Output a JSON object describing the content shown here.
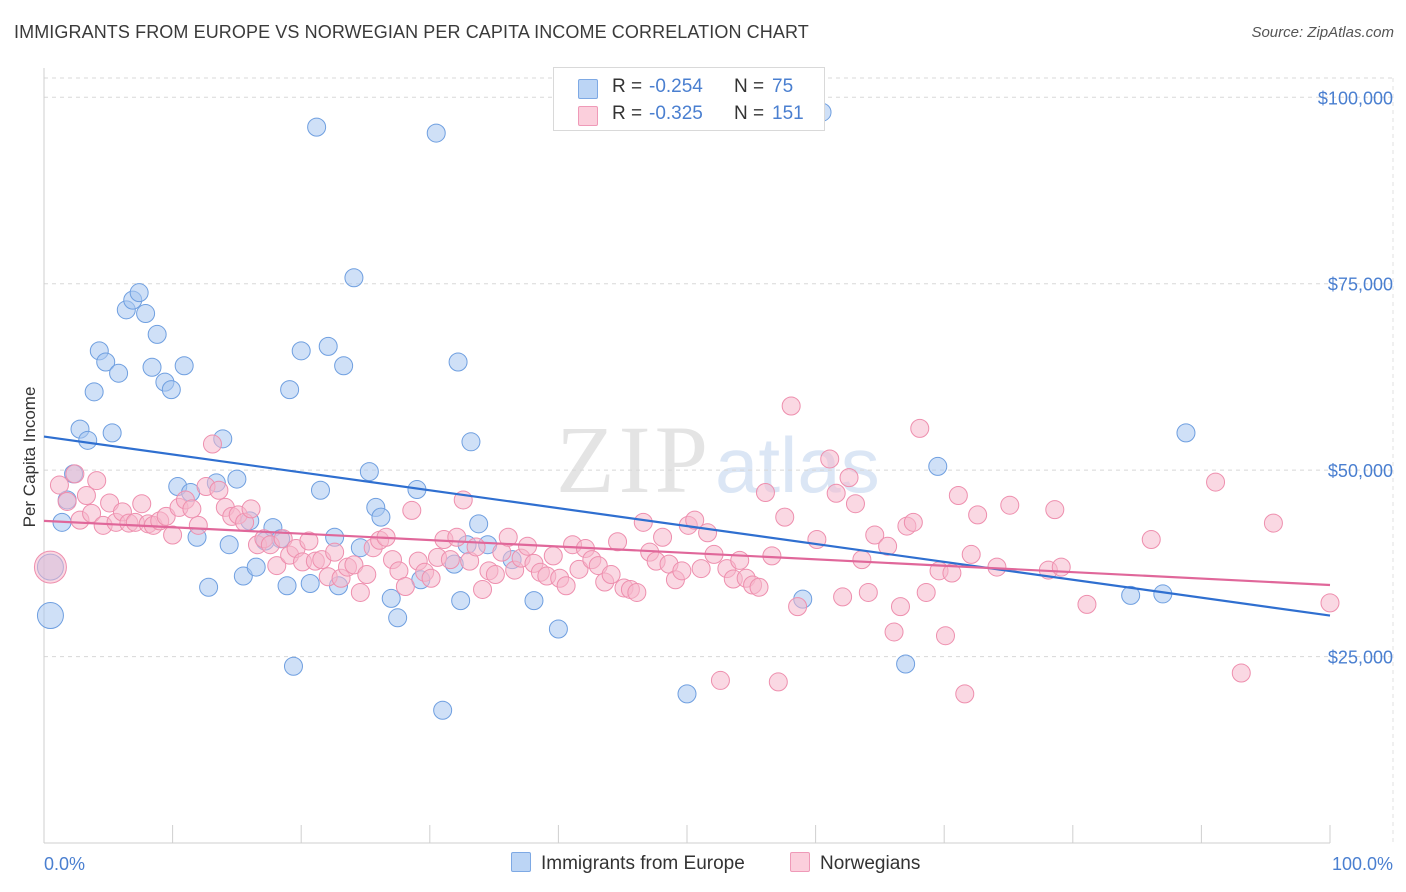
{
  "title": "IMMIGRANTS FROM EUROPE VS NORWEGIAN PER CAPITA INCOME CORRELATION CHART",
  "source": "Source: ZipAtlas.com",
  "watermark": {
    "zip": "ZIP",
    "atlas": "atlas"
  },
  "legend_top": [
    {
      "r_label": "R =",
      "r_value": "-0.254",
      "n_label": "N =",
      "n_value": "75",
      "color": "#a7c6f0"
    },
    {
      "r_label": "R =",
      "r_value": "-0.325",
      "n_label": "N =",
      "n_value": "151",
      "color": "#f6b8cc"
    }
  ],
  "legend_bottom": [
    {
      "label": "Immigrants from Europe",
      "color": "#a7c6f0"
    },
    {
      "label": "Norwegians",
      "color": "#f6b8cc"
    }
  ],
  "chart_data": {
    "type": "scatter",
    "title": "IMMIGRANTS FROM EUROPE VS NORWEGIAN PER CAPITA INCOME CORRELATION CHART",
    "xlabel": "",
    "ylabel": "Per Capita Income",
    "xlim": [
      0,
      100
    ],
    "ylim": [
      0,
      105000
    ],
    "x_tick_labels": [
      "0.0%",
      "100.0%"
    ],
    "y_ticks": [
      25000,
      50000,
      75000,
      100000
    ],
    "y_tick_labels": [
      "$25,000",
      "$50,000",
      "$75,000",
      "$100,000"
    ],
    "grid": true,
    "legend_position": "top-center",
    "series": [
      {
        "name": "Immigrants from Europe",
        "color": "#a7c6f0",
        "stroke": "#6f9fe0",
        "trend_color": "#2f6fd0",
        "trend": {
          "x": [
            0,
            100
          ],
          "y": [
            54500,
            30500
          ]
        },
        "points": [
          [
            0.5,
            30500,
            2
          ],
          [
            0.5,
            37000,
            2
          ],
          [
            1.4,
            43000,
            1
          ],
          [
            1.8,
            46000,
            1
          ],
          [
            2.3,
            49500,
            1
          ],
          [
            2.8,
            55500,
            1
          ],
          [
            3.4,
            54000,
            1
          ],
          [
            3.9,
            60500,
            1
          ],
          [
            4.3,
            66000,
            1
          ],
          [
            4.8,
            64500,
            1
          ],
          [
            5.3,
            55000,
            1
          ],
          [
            5.8,
            63000,
            1
          ],
          [
            6.4,
            71500,
            1
          ],
          [
            6.9,
            72800,
            1
          ],
          [
            7.4,
            73800,
            1
          ],
          [
            7.9,
            71000,
            1
          ],
          [
            8.4,
            63800,
            1
          ],
          [
            8.8,
            68200,
            1
          ],
          [
            9.4,
            61800,
            1
          ],
          [
            9.9,
            60800,
            1
          ],
          [
            10.4,
            47800,
            1
          ],
          [
            10.9,
            64000,
            1
          ],
          [
            11.4,
            47000,
            1
          ],
          [
            11.9,
            41000,
            1
          ],
          [
            12.8,
            34300,
            1
          ],
          [
            13.4,
            48300,
            1
          ],
          [
            13.9,
            54200,
            1
          ],
          [
            14.4,
            40000,
            1
          ],
          [
            15.0,
            48800,
            1
          ],
          [
            15.5,
            35800,
            1
          ],
          [
            16.0,
            43200,
            1
          ],
          [
            16.5,
            37000,
            1
          ],
          [
            17.2,
            40500,
            1
          ],
          [
            17.8,
            42300,
            1
          ],
          [
            18.4,
            40800,
            1
          ],
          [
            18.9,
            34500,
            1
          ],
          [
            19.1,
            60800,
            1
          ],
          [
            19.4,
            23700,
            1
          ],
          [
            20.0,
            66000,
            1
          ],
          [
            20.7,
            34800,
            1
          ],
          [
            21.2,
            96000,
            1
          ],
          [
            21.5,
            47300,
            1
          ],
          [
            22.1,
            66600,
            1
          ],
          [
            22.6,
            41000,
            1
          ],
          [
            22.9,
            34500,
            1
          ],
          [
            23.3,
            64000,
            1
          ],
          [
            24.1,
            75800,
            1
          ],
          [
            24.6,
            39600,
            1
          ],
          [
            25.3,
            49800,
            1
          ],
          [
            25.8,
            45000,
            1
          ],
          [
            26.2,
            43700,
            1
          ],
          [
            27.0,
            32800,
            1
          ],
          [
            27.5,
            30200,
            1
          ],
          [
            29.0,
            47400,
            1
          ],
          [
            29.3,
            35300,
            1
          ],
          [
            30.5,
            95200,
            1
          ],
          [
            31.0,
            17800,
            1
          ],
          [
            31.9,
            37400,
            1
          ],
          [
            32.4,
            32500,
            1
          ],
          [
            32.9,
            40000,
            1
          ],
          [
            33.2,
            53800,
            1
          ],
          [
            33.8,
            42800,
            1
          ],
          [
            34.5,
            40000,
            1
          ],
          [
            32.2,
            64500,
            1
          ],
          [
            36.4,
            38000,
            1
          ],
          [
            38.1,
            32500,
            1
          ],
          [
            40.0,
            28700,
            1
          ],
          [
            50.0,
            20000,
            1
          ],
          [
            59.0,
            32700,
            1
          ],
          [
            60.5,
            98000,
            1
          ],
          [
            67.0,
            24000,
            1
          ],
          [
            69.5,
            50500,
            1
          ],
          [
            84.5,
            33200,
            1
          ],
          [
            87.0,
            33400,
            1
          ],
          [
            88.8,
            55000,
            1
          ]
        ]
      },
      {
        "name": "Norwegians",
        "color": "#f6b8cc",
        "stroke": "#ee8fae",
        "trend_color": "#e0679a",
        "trend": {
          "x": [
            0,
            100
          ],
          "y": [
            43200,
            34600
          ]
        },
        "points": [
          [
            0.5,
            37000,
            3
          ],
          [
            1.2,
            48000,
            1
          ],
          [
            1.8,
            45800,
            1
          ],
          [
            2.4,
            49500,
            1
          ],
          [
            2.8,
            43300,
            1
          ],
          [
            3.3,
            46600,
            1
          ],
          [
            3.7,
            44200,
            1
          ],
          [
            4.1,
            48600,
            1
          ],
          [
            4.6,
            42600,
            1
          ],
          [
            5.1,
            45600,
            1
          ],
          [
            5.6,
            43000,
            1
          ],
          [
            6.1,
            44400,
            1
          ],
          [
            6.6,
            42900,
            1
          ],
          [
            7.1,
            43000,
            1
          ],
          [
            7.6,
            45500,
            1
          ],
          [
            8.1,
            42800,
            1
          ],
          [
            8.5,
            42600,
            1
          ],
          [
            9.0,
            43200,
            1
          ],
          [
            9.5,
            43800,
            1
          ],
          [
            10.0,
            41300,
            1
          ],
          [
            10.5,
            45000,
            1
          ],
          [
            11.0,
            46000,
            1
          ],
          [
            11.5,
            44800,
            1
          ],
          [
            12.0,
            42600,
            1
          ],
          [
            12.6,
            47800,
            1
          ],
          [
            13.1,
            53500,
            1
          ],
          [
            13.6,
            47300,
            1
          ],
          [
            14.1,
            45000,
            1
          ],
          [
            14.6,
            43800,
            1
          ],
          [
            15.1,
            44000,
            1
          ],
          [
            15.6,
            43000,
            1
          ],
          [
            16.1,
            44800,
            1
          ],
          [
            16.6,
            40000,
            1
          ],
          [
            17.1,
            40800,
            1
          ],
          [
            17.6,
            40000,
            1
          ],
          [
            18.1,
            37200,
            1
          ],
          [
            18.6,
            40800,
            1
          ],
          [
            19.1,
            38600,
            1
          ],
          [
            19.6,
            39500,
            1
          ],
          [
            20.1,
            37700,
            1
          ],
          [
            20.6,
            40500,
            1
          ],
          [
            21.1,
            37800,
            1
          ],
          [
            21.6,
            38000,
            1
          ],
          [
            22.1,
            35700,
            1
          ],
          [
            22.6,
            39000,
            1
          ],
          [
            23.1,
            35500,
            1
          ],
          [
            23.6,
            37000,
            1
          ],
          [
            24.1,
            37300,
            1
          ],
          [
            24.6,
            33600,
            1
          ],
          [
            25.1,
            36000,
            1
          ],
          [
            25.6,
            39600,
            1
          ],
          [
            26.1,
            40600,
            1
          ],
          [
            26.6,
            41000,
            1
          ],
          [
            27.1,
            38000,
            1
          ],
          [
            27.6,
            36500,
            1
          ],
          [
            28.1,
            34400,
            1
          ],
          [
            28.6,
            44600,
            1
          ],
          [
            29.1,
            37800,
            1
          ],
          [
            29.6,
            36300,
            1
          ],
          [
            30.1,
            35500,
            1
          ],
          [
            30.6,
            38300,
            1
          ],
          [
            31.1,
            40700,
            1
          ],
          [
            31.6,
            38000,
            1
          ],
          [
            32.1,
            41000,
            1
          ],
          [
            32.6,
            46000,
            1
          ],
          [
            33.1,
            37800,
            1
          ],
          [
            33.6,
            39700,
            1
          ],
          [
            34.1,
            34000,
            1
          ],
          [
            34.6,
            36500,
            1
          ],
          [
            35.1,
            36000,
            1
          ],
          [
            35.6,
            39000,
            1
          ],
          [
            36.1,
            41000,
            1
          ],
          [
            36.6,
            36600,
            1
          ],
          [
            37.1,
            38200,
            1
          ],
          [
            37.6,
            39800,
            1
          ],
          [
            38.1,
            37500,
            1
          ],
          [
            38.6,
            36300,
            1
          ],
          [
            39.1,
            35800,
            1
          ],
          [
            39.6,
            38500,
            1
          ],
          [
            40.1,
            35500,
            1
          ],
          [
            40.6,
            34500,
            1
          ],
          [
            41.1,
            40000,
            1
          ],
          [
            41.6,
            36700,
            1
          ],
          [
            42.1,
            39500,
            1
          ],
          [
            42.6,
            38000,
            1
          ],
          [
            43.1,
            37200,
            1
          ],
          [
            43.6,
            35000,
            1
          ],
          [
            44.1,
            36000,
            1
          ],
          [
            44.6,
            40400,
            1
          ],
          [
            45.1,
            34200,
            1
          ],
          [
            45.6,
            34000,
            1
          ],
          [
            46.1,
            33600,
            1
          ],
          [
            46.6,
            43000,
            1
          ],
          [
            47.1,
            39000,
            1
          ],
          [
            47.6,
            37800,
            1
          ],
          [
            48.1,
            41000,
            1
          ],
          [
            48.6,
            37400,
            1
          ],
          [
            49.1,
            35300,
            1
          ],
          [
            49.6,
            36500,
            1
          ],
          [
            50.1,
            42600,
            1
          ],
          [
            50.6,
            43300,
            1
          ],
          [
            51.1,
            36800,
            1
          ],
          [
            51.6,
            41600,
            1
          ],
          [
            52.1,
            38700,
            1
          ],
          [
            52.6,
            21800,
            1
          ],
          [
            53.1,
            36800,
            1
          ],
          [
            53.6,
            35400,
            1
          ],
          [
            54.1,
            37900,
            1
          ],
          [
            54.6,
            35500,
            1
          ],
          [
            55.1,
            34600,
            1
          ],
          [
            55.6,
            34300,
            1
          ],
          [
            56.1,
            47000,
            1
          ],
          [
            56.6,
            38500,
            1
          ],
          [
            57.1,
            21600,
            1
          ],
          [
            57.6,
            43700,
            1
          ],
          [
            58.1,
            58600,
            1
          ],
          [
            58.6,
            31700,
            1
          ],
          [
            60.1,
            40700,
            1
          ],
          [
            61.1,
            51500,
            1
          ],
          [
            61.6,
            46900,
            1
          ],
          [
            62.1,
            33000,
            1
          ],
          [
            62.6,
            49000,
            1
          ],
          [
            63.1,
            45500,
            1
          ],
          [
            63.6,
            38000,
            1
          ],
          [
            64.1,
            33600,
            1
          ],
          [
            64.6,
            41300,
            1
          ],
          [
            65.6,
            39800,
            1
          ],
          [
            66.1,
            28300,
            1
          ],
          [
            66.6,
            31700,
            1
          ],
          [
            67.1,
            42500,
            1
          ],
          [
            67.6,
            43000,
            1
          ],
          [
            68.1,
            55600,
            1
          ],
          [
            68.6,
            33600,
            1
          ],
          [
            69.6,
            36500,
            1
          ],
          [
            70.1,
            27800,
            1
          ],
          [
            70.6,
            36200,
            1
          ],
          [
            71.1,
            46600,
            1
          ],
          [
            71.6,
            20000,
            1
          ],
          [
            72.1,
            38700,
            1
          ],
          [
            72.6,
            44000,
            1
          ],
          [
            74.1,
            37000,
            1
          ],
          [
            75.1,
            45300,
            1
          ],
          [
            78.1,
            36600,
            1
          ],
          [
            78.6,
            44700,
            1
          ],
          [
            79.1,
            37000,
            1
          ],
          [
            81.1,
            32000,
            1
          ],
          [
            86.1,
            40700,
            1
          ],
          [
            91.1,
            48400,
            1
          ],
          [
            93.1,
            22800,
            1
          ],
          [
            100.0,
            32200,
            1
          ],
          [
            95.6,
            42900,
            1
          ]
        ]
      }
    ]
  }
}
